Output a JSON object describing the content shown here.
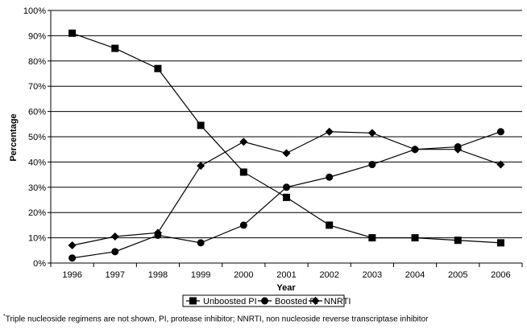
{
  "chart_data": {
    "type": "line",
    "x": [
      "1996",
      "1997",
      "1998",
      "1999",
      "2000",
      "2001",
      "2002",
      "2003",
      "2004",
      "2005",
      "2006"
    ],
    "xlabel": "Year",
    "ylabel": "Percentage",
    "ylim": [
      0,
      100
    ],
    "yticks": [
      "0%",
      "10%",
      "20%",
      "30%",
      "40%",
      "50%",
      "60%",
      "70%",
      "80%",
      "90%",
      "100%"
    ],
    "grid": true,
    "legend_position": "bottom",
    "series": [
      {
        "name": "Unboosted PI",
        "marker": "square",
        "color": "#000000",
        "values": [
          91,
          85,
          77,
          54.5,
          36,
          26,
          15,
          10,
          10,
          9,
          8
        ]
      },
      {
        "name": "Boosted PI",
        "marker": "circle",
        "color": "#000000",
        "values": [
          2,
          4.5,
          11,
          8,
          15,
          30,
          34,
          39,
          45,
          46,
          52
        ]
      },
      {
        "name": "NNRTI",
        "marker": "diamond",
        "color": "#000000",
        "values": [
          7,
          10.5,
          12,
          38.5,
          48,
          43.5,
          52,
          51.5,
          45,
          45,
          39
        ]
      }
    ]
  },
  "footnote": {
    "mark": "*",
    "text": "Triple nucleoside regimens are not shown, PI, protease inhibitor; NNRTI, non nucleoside reverse transcriptase inhibitor"
  }
}
